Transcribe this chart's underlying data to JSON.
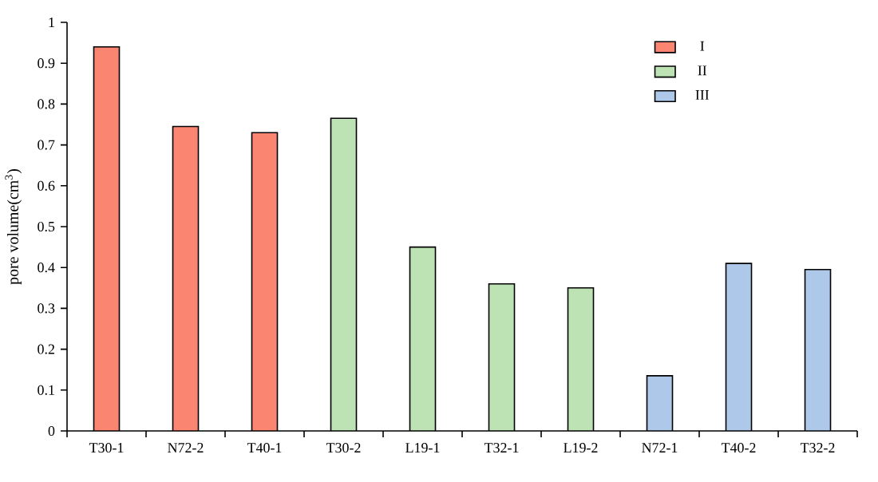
{
  "chart_data": {
    "type": "bar",
    "ylabel": "pore volume(cm$^{3}$)",
    "categories": [
      "T30-1",
      "N72-2",
      "T40-1",
      "T30-2",
      "L19-1",
      "T32-1",
      "L19-2",
      "N72-1",
      "T40-2",
      "T32-2"
    ],
    "series": [
      {
        "name": "I",
        "color": "#fa8672",
        "values": [
          0.94,
          0.745,
          0.73,
          null,
          null,
          null,
          null,
          null,
          null,
          null
        ]
      },
      {
        "name": "II",
        "color": "#bde3b4",
        "values": [
          null,
          null,
          null,
          0.765,
          0.45,
          0.36,
          0.35,
          null,
          null,
          null
        ]
      },
      {
        "name": "III",
        "color": "#aec8ea",
        "values": [
          null,
          null,
          null,
          null,
          null,
          null,
          null,
          0.135,
          0.41,
          0.395
        ]
      }
    ],
    "ylim": [
      0,
      1
    ],
    "yticks": [
      0,
      0.1,
      0.2,
      0.3,
      0.4,
      0.5,
      0.6,
      0.7,
      0.8,
      0.9,
      1
    ],
    "legend": "top right",
    "grid": false
  }
}
